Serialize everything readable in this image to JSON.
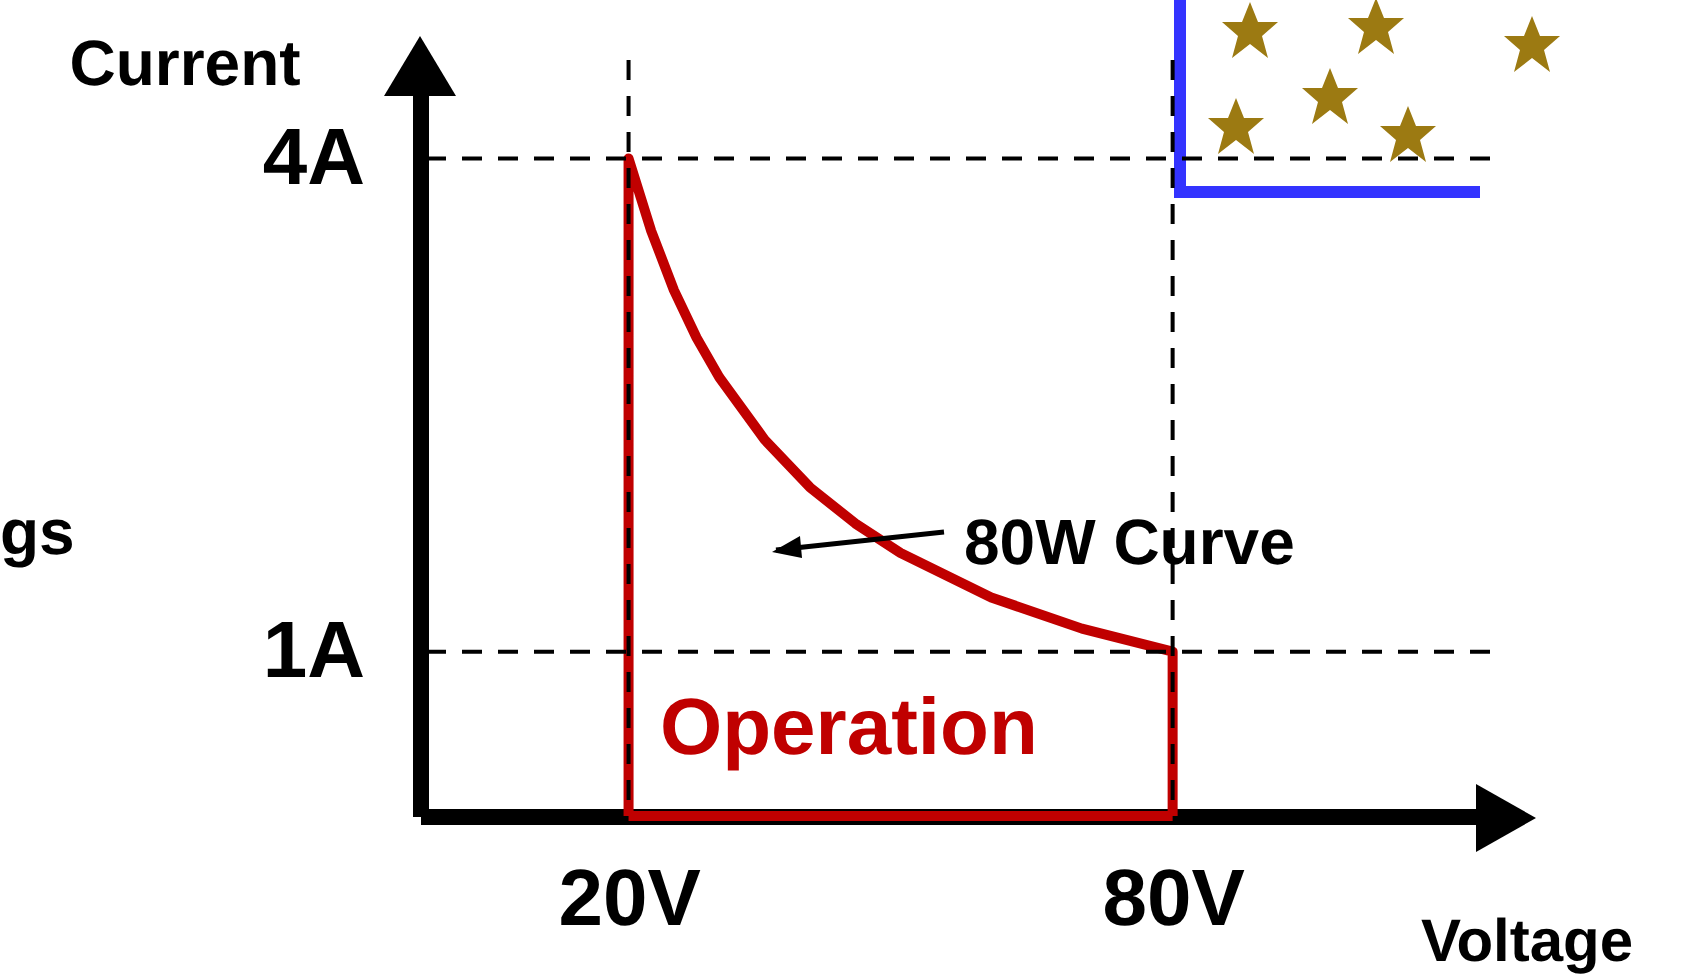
{
  "chart_data": {
    "type": "line",
    "xlabel": "Voltage",
    "ylabel": "Current",
    "series": [
      {
        "color": "#c00000",
        "x": [
          20,
          20,
          22.5,
          25,
          27.5,
          30,
          35,
          40,
          45,
          50,
          60,
          70,
          80,
          80
        ],
        "values": [
          0,
          4,
          3.56,
          3.2,
          2.91,
          2.67,
          2.29,
          2,
          1.78,
          1.6,
          1.33,
          1.14,
          1,
          0
        ]
      },
      {
        "color": "#c00000",
        "x": [
          20,
          80
        ],
        "values": [
          0,
          0
        ]
      }
    ],
    "xlim": [
      -3,
      115
    ],
    "ylim": [
      0,
      4.6
    ],
    "xticks": [
      {
        "value": 20,
        "label": "20V"
      },
      {
        "value": 80,
        "label": "80V"
      }
    ],
    "yticks": [
      {
        "value": 1,
        "label": "1A"
      },
      {
        "value": 4,
        "label": "4A"
      }
    ],
    "grid": false,
    "marker": "none",
    "line_style": "solid",
    "ref_lines": [
      {
        "axis": "y",
        "value": 4,
        "line_style": "dashed",
        "color": "#000000"
      },
      {
        "axis": "y",
        "value": 1,
        "line_style": "dashed",
        "color": "#000000"
      },
      {
        "axis": "x",
        "value": 20,
        "line_style": "dashed",
        "color": "#000000"
      },
      {
        "axis": "x",
        "value": 80,
        "line_style": "dashed",
        "color": "#000000"
      }
    ],
    "annotations": [
      "80W Curve",
      "Operation",
      "gs"
    ]
  }
}
